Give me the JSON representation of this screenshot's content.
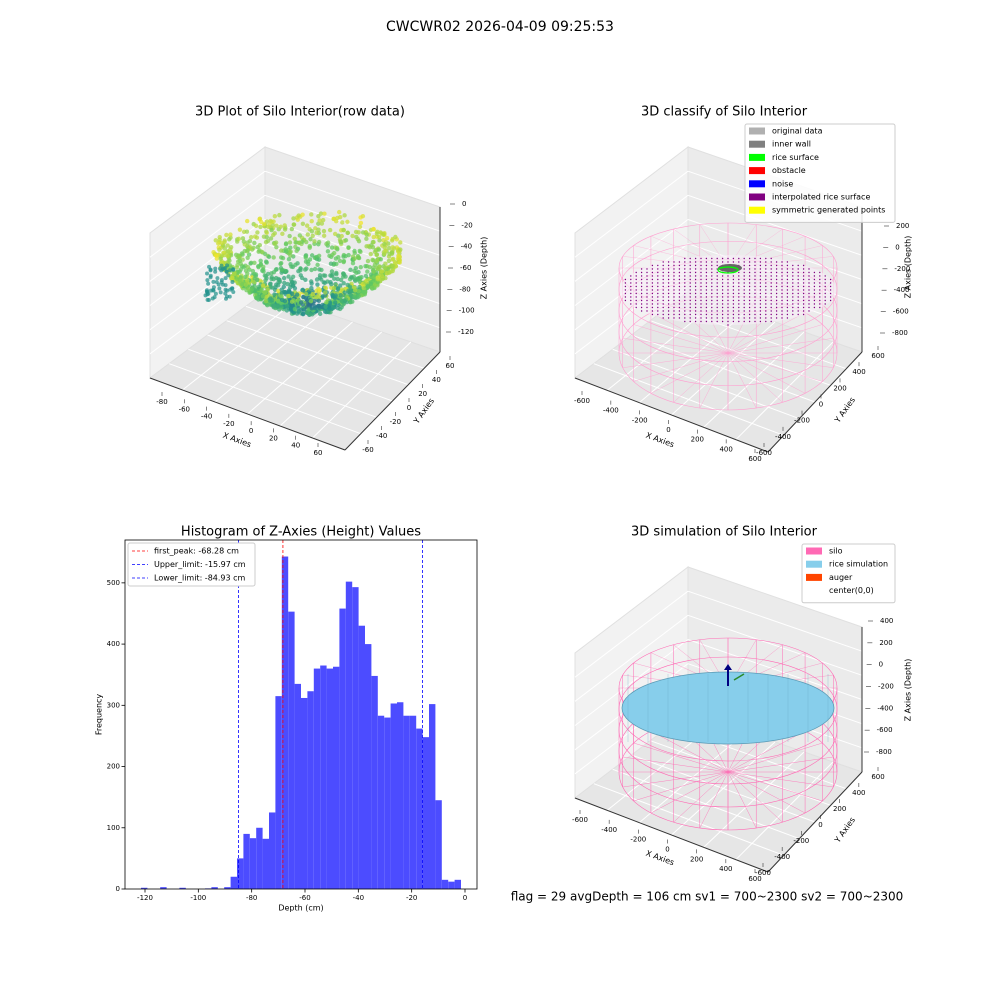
{
  "title": "CWCWR02 2026-04-09 09:25:53",
  "footer": "flag = 29  avgDepth = 106 cm  sv1 = 700~2300  sv2 = 700~2300",
  "chart_data": [
    {
      "type": "scatter3d",
      "title": "3D Plot of Silo Interior(row data)",
      "xlabel": "X Axies",
      "ylabel": "Y Axies",
      "zlabel": "Z Axies (Depth)",
      "xticks": [
        -80,
        -60,
        -40,
        -20,
        0,
        20,
        40,
        60
      ],
      "yticks": [
        -60,
        -40,
        -20,
        0,
        20,
        40,
        60
      ],
      "zticks": [
        0,
        -20,
        -40,
        -60,
        -80,
        -100,
        -120
      ]
    },
    {
      "type": "classify3d",
      "title": "3D classify of Silo Interior",
      "xlabel": "X Axies",
      "ylabel": "Y Axies",
      "zlabel": "Z Axies (Depth)",
      "xticks": [
        -600,
        -400,
        -200,
        0,
        200,
        400,
        600
      ],
      "yticks": [
        -600,
        -400,
        -200,
        0,
        200,
        400,
        600
      ],
      "zticks": [
        200,
        0,
        -200,
        -400,
        -600,
        -800
      ],
      "legend_entries": [
        {
          "label": "original data",
          "color": "#b0b0b0"
        },
        {
          "label": "inner wall",
          "color": "#808080"
        },
        {
          "label": "rice surface",
          "color": "#00ff00"
        },
        {
          "label": "obstacle",
          "color": "#ff0000"
        },
        {
          "label": "noise",
          "color": "#0000ff"
        },
        {
          "label": "interpolated rice surface",
          "color": "#800080"
        },
        {
          "label": "symmetric generated points",
          "color": "#ffff00"
        }
      ]
    },
    {
      "type": "histogram",
      "title": "Histogram of Z-Axies (Height) Values",
      "xlabel": "Depth (cm)",
      "ylabel": "Frequency",
      "color": "#4c4cff",
      "bins": [
        -121.5,
        -119.1,
        -116.7,
        -114.3,
        -111.9,
        -109.5,
        -107.1,
        -104.7,
        -102.3,
        -99.9,
        -97.5,
        -95.1,
        -92.7,
        -90.3,
        -87.9,
        -85.5,
        -83.1,
        -80.7,
        -78.3,
        -75.9,
        -73.5,
        -71.1,
        -68.7,
        -66.3,
        -63.9,
        -61.5,
        -59.1,
        -56.7,
        -54.3,
        -51.9,
        -49.5,
        -47.1,
        -44.7,
        -42.3,
        -39.9,
        -37.5,
        -35.1,
        -32.7,
        -30.3,
        -27.9,
        -25.5,
        -23.1,
        -20.7,
        -18.3,
        -15.9,
        -13.5,
        -11.1,
        -8.7,
        -6.3,
        -3.9,
        -1.5
      ],
      "values": [
        2,
        0,
        0,
        3,
        0,
        0,
        2,
        0,
        0,
        0,
        1,
        3,
        0,
        3,
        20,
        50,
        90,
        83,
        100,
        82,
        125,
        315,
        543,
        453,
        335,
        312,
        323,
        360,
        365,
        360,
        363,
        458,
        502,
        493,
        430,
        400,
        348,
        283,
        280,
        303,
        305,
        283,
        283,
        262,
        248,
        302,
        145,
        15,
        12,
        15
      ],
      "xlim": [
        -127.5,
        4.5
      ],
      "ylim": [
        0,
        570
      ],
      "xticks": [
        -120,
        -100,
        -80,
        -60,
        -40,
        -20,
        0
      ],
      "yticks": [
        0,
        100,
        200,
        300,
        400,
        500
      ],
      "vlines": [
        {
          "name": "first_peak: -68.28 cm",
          "value": -68.28,
          "color": "#ff0000"
        },
        {
          "name": "Upper_limit: -15.97 cm",
          "value": -15.97,
          "color": "#0000ff"
        },
        {
          "name": "Lower_limit: -84.93 cm",
          "value": -84.93,
          "color": "#0000ff"
        }
      ],
      "legend": "upper left"
    },
    {
      "type": "simulation3d",
      "title": "3D simulation of Silo Interior",
      "xlabel": "X Axies",
      "ylabel": "Y Axies",
      "zlabel": "Z Axies (Depth)",
      "xticks": [
        -600,
        -400,
        -200,
        0,
        200,
        400,
        600
      ],
      "yticks": [
        -600,
        -400,
        -200,
        0,
        200,
        400,
        600
      ],
      "zticks": [
        400,
        200,
        0,
        -200,
        -400,
        -600,
        -800
      ],
      "legend_entries": [
        {
          "label": "silo",
          "color": "#ff69b4"
        },
        {
          "label": "rice simulation",
          "color": "#87ceeb"
        },
        {
          "label": "auger",
          "color": "#ff4500"
        },
        {
          "label": "center(0,0)"
        }
      ]
    }
  ]
}
